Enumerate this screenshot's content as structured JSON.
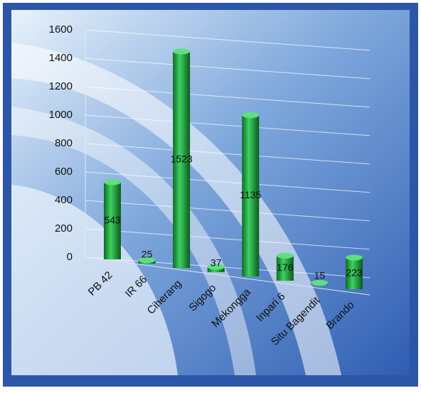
{
  "chart_data": {
    "type": "bar",
    "categories": [
      "PB 42",
      "IR 66",
      "Ciherang",
      "Sigogo",
      "Mekongga",
      "Inpari 6",
      "Situ Bagendit",
      "Brando"
    ],
    "values": [
      543,
      25,
      1523,
      37,
      1135,
      176,
      15,
      223
    ],
    "color": "#1aa03a",
    "ylim": [
      0,
      1600
    ],
    "yticks": [
      0,
      200,
      400,
      600,
      800,
      1000,
      1200,
      1400,
      1600
    ],
    "grid": true
  }
}
